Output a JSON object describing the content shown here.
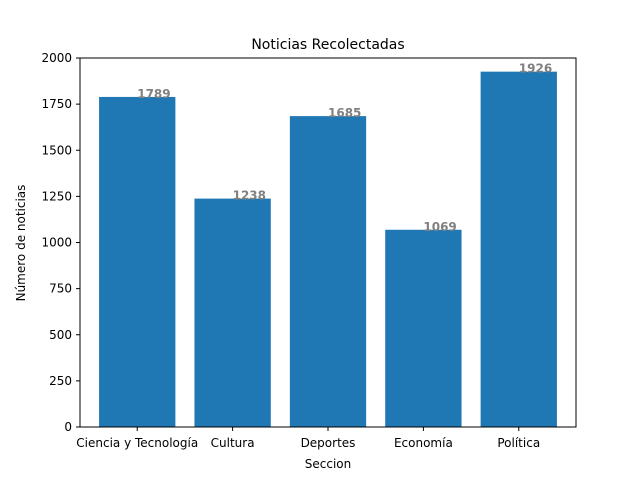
{
  "chart_data": {
    "type": "bar",
    "title": "Noticias Recolectadas",
    "xlabel": "Seccion",
    "ylabel": "Número de noticias",
    "categories": [
      "Ciencia y Tecnología",
      "Cultura",
      "Deportes",
      "Economía",
      "Política"
    ],
    "values": [
      1789,
      1238,
      1685,
      1069,
      1926
    ],
    "ylim": [
      0,
      2000
    ],
    "yticks": [
      0,
      250,
      500,
      750,
      1000,
      1250,
      1500,
      1750,
      2000
    ],
    "grid": false,
    "bar_color": "#1f77b4",
    "label_color": "#808080"
  }
}
